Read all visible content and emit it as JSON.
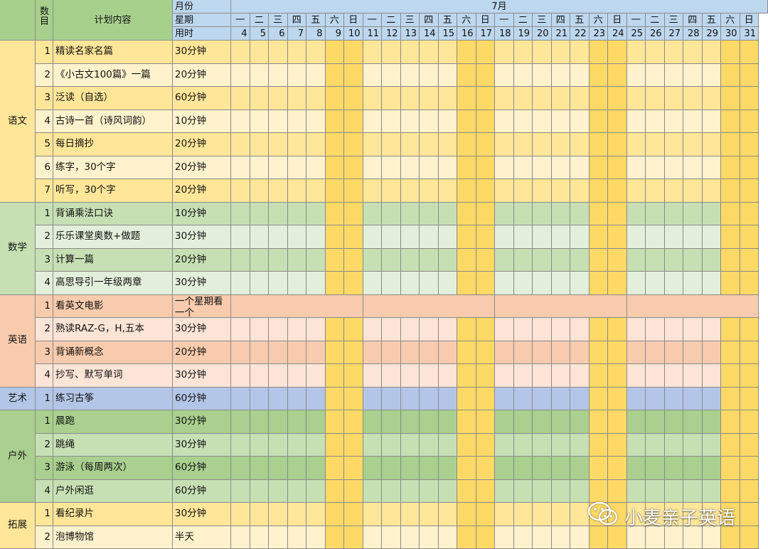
{
  "header": {
    "count_label": "数目",
    "plan_label": "计划内容",
    "month_row_label": "月份",
    "week_row_label": "星期",
    "time_row_label": "用时",
    "month": "7月",
    "weekdays": [
      "一",
      "二",
      "三",
      "四",
      "五",
      "六",
      "日",
      "一",
      "二",
      "三",
      "四",
      "五",
      "六",
      "日",
      "一",
      "二",
      "三",
      "四",
      "五",
      "六",
      "日",
      "一",
      "二",
      "三",
      "四",
      "五",
      "六",
      "日"
    ],
    "dates": [
      "4",
      "5",
      "6",
      "7",
      "8",
      "9",
      "10",
      "11",
      "12",
      "13",
      "14",
      "15",
      "16",
      "17",
      "18",
      "19",
      "20",
      "21",
      "22",
      "23",
      "24",
      "25",
      "26",
      "27",
      "28",
      "29",
      "30",
      "31"
    ]
  },
  "sections": [
    {
      "name": "语文",
      "theme": "yellow",
      "items": [
        {
          "no": "1",
          "content": "精读名家名篇",
          "time": "30分钟"
        },
        {
          "no": "2",
          "content": "《小古文100篇》一篇",
          "time": "20分钟"
        },
        {
          "no": "3",
          "content": "泛读（自选）",
          "time": "60分钟"
        },
        {
          "no": "4",
          "content": "古诗一首（诗风词韵）",
          "time": "10分钟"
        },
        {
          "no": "5",
          "content": "每日摘抄",
          "time": "20分钟"
        },
        {
          "no": "6",
          "content": "练字，30个字",
          "time": "20分钟"
        },
        {
          "no": "7",
          "content": "听写，30个字",
          "time": "20分钟"
        }
      ]
    },
    {
      "name": "数学",
      "theme": "green",
      "items": [
        {
          "no": "1",
          "content": "背诵乘法口诀",
          "time": "10分钟"
        },
        {
          "no": "2",
          "content": "乐乐课堂奥数+做题",
          "time": "30分钟"
        },
        {
          "no": "3",
          "content": "计算一篇",
          "time": "20分钟"
        },
        {
          "no": "4",
          "content": "高思导引一年级两章",
          "time": "30分钟"
        }
      ]
    },
    {
      "name": "英语",
      "theme": "orange",
      "items": [
        {
          "no": "1",
          "content": "看英文电影",
          "time": "一个星期看一个"
        },
        {
          "no": "2",
          "content": "熟读RAZ-G，H,五本",
          "time": "30分钟"
        },
        {
          "no": "3",
          "content": "背诵新概念",
          "time": "20分钟"
        },
        {
          "no": "4",
          "content": "抄写、默写单词",
          "time": "30分钟"
        }
      ]
    },
    {
      "name": "艺术",
      "theme": "blue",
      "items": [
        {
          "no": "1",
          "content": "练习古筝",
          "time": "60分钟"
        }
      ]
    },
    {
      "name": "户外",
      "theme": "green2",
      "items": [
        {
          "no": "1",
          "content": "晨跑",
          "time": "30分钟"
        },
        {
          "no": "2",
          "content": "跳绳",
          "time": "30分钟"
        },
        {
          "no": "3",
          "content": "游泳（每周两次）",
          "time": "60分钟"
        },
        {
          "no": "4",
          "content": "户外闲逛",
          "time": "60分钟"
        }
      ]
    },
    {
      "name": "拓展",
      "theme": "yellow",
      "items": [
        {
          "no": "1",
          "content": "看纪录片",
          "time": "30分钟"
        },
        {
          "no": "2",
          "content": "泡博物馆",
          "time": "半天"
        }
      ]
    }
  ],
  "watermark": {
    "text": "小麦亲子英语",
    "icon": "wechat-icon"
  },
  "colors": {
    "header_green": "#a8d08d",
    "header_blue": "#bdd7ee",
    "weekend": "#ffd966",
    "yellow_dark": "#ffe699",
    "yellow_light": "#fff2cc",
    "green_dark": "#c6e0b4",
    "green_light": "#e2efda",
    "orange_dark": "#f8cbad",
    "orange_light": "#fce4d6",
    "blue_dark": "#b4c6e7",
    "blue_light": "#b4c6e7",
    "green2_dark": "#a9d08e",
    "green2_light": "#c6e0b4"
  }
}
